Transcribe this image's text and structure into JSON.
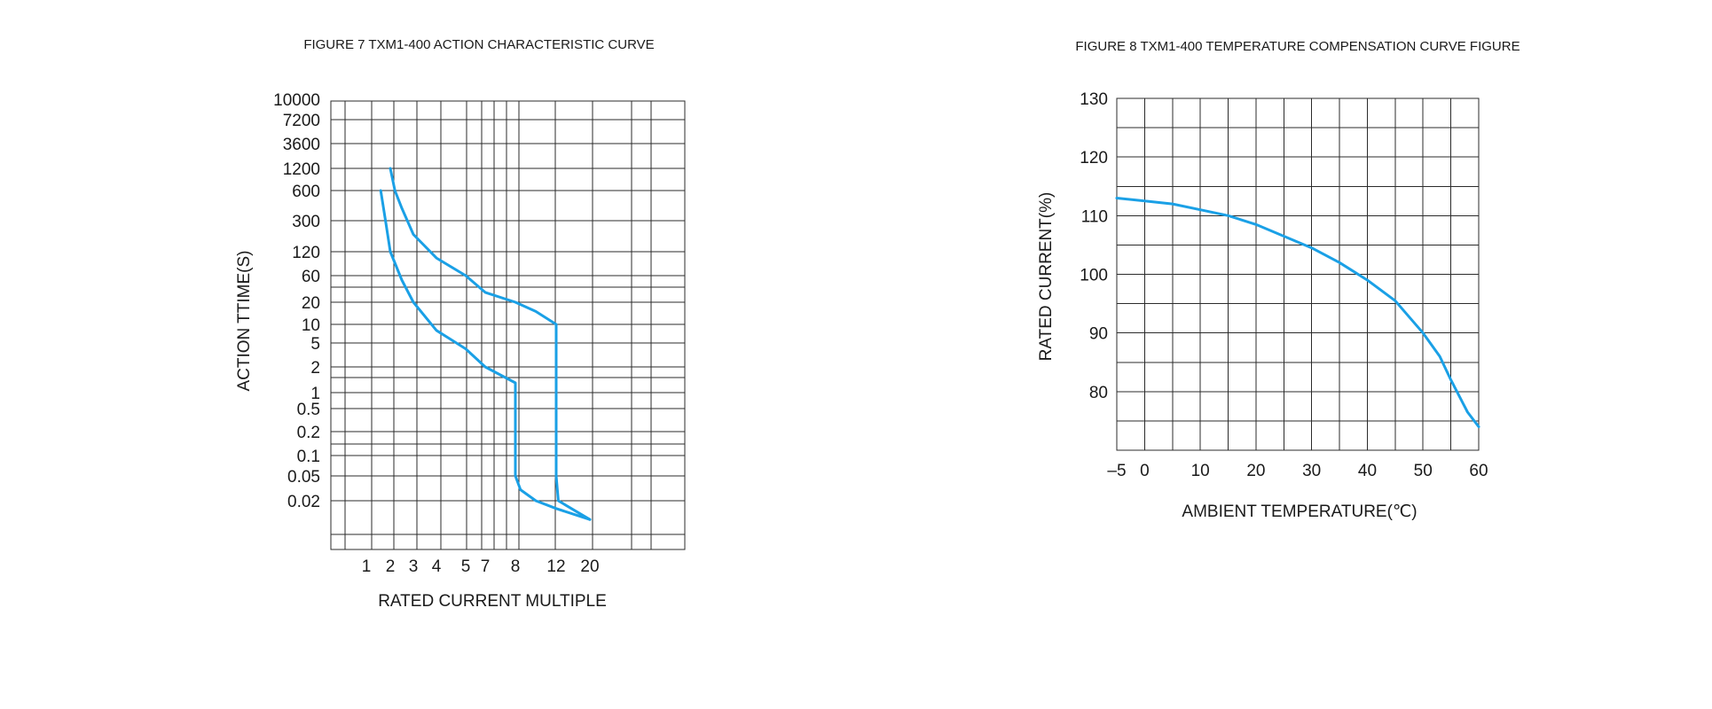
{
  "chart_data": [
    {
      "type": "line",
      "title": "FIGURE 7 TXM1-400 ACTION CHARACTERISTIC CURVE",
      "xlabel": "RATED CURRENT MULTIPLE",
      "ylabel": "ACTION TTIME(S)",
      "x_tick_labels": [
        "1",
        "2",
        "3",
        "4",
        "5",
        "7",
        "8",
        "12",
        "20"
      ],
      "y_tick_labels": [
        "10000",
        "7200",
        "3600",
        "1200",
        "600",
        "300",
        "120",
        "60",
        "20",
        "10",
        "5",
        "2",
        "1",
        "0.5",
        "0.2",
        "0.1",
        "0.05",
        "0.02"
      ],
      "grid": true,
      "series": [
        {
          "x": [
            "1.6",
            "1.8",
            "2",
            "2.5",
            "3",
            "4",
            "5",
            "7",
            "8",
            "8",
            "8",
            "8.5",
            "10",
            "12",
            "20"
          ],
          "y": [
            "600",
            "300",
            "120",
            "50",
            "20",
            "8",
            "4",
            "2",
            "1.3",
            "0.1",
            "0.05",
            "0.03",
            "0.02",
            "0.015",
            "0.01"
          ]
        },
        {
          "x": [
            "2",
            "2.2",
            "2.5",
            "3",
            "4",
            "5",
            "7",
            "8",
            "10",
            "12",
            "12",
            "12",
            "12.5",
            "20"
          ],
          "y": [
            "1200",
            "600",
            "400",
            "200",
            "100",
            "60",
            "30",
            "20",
            "15",
            "10",
            "1",
            "0.05",
            "0.02",
            "0.01"
          ]
        }
      ]
    },
    {
      "type": "line",
      "title": "FIGURE 8 TXM1-400 TEMPERATURE COMPENSATION CURVE FIGURE",
      "xlabel": "AMBIENT TEMPERATURE(℃)",
      "ylabel": "RATED CURRENT(%)",
      "x_tick_labels": [
        "–5",
        "0",
        "10",
        "20",
        "30",
        "40",
        "50",
        "60"
      ],
      "y_tick_labels": [
        "130",
        "120",
        "110",
        "100",
        "90",
        "80"
      ],
      "xlim": [
        -5,
        60
      ],
      "ylim": [
        70,
        130
      ],
      "grid": true,
      "series": [
        {
          "x": [
            -5,
            0,
            5,
            10,
            15,
            20,
            25,
            30,
            35,
            40,
            45,
            50,
            53,
            55,
            58,
            60
          ],
          "y": [
            113,
            112.5,
            112,
            111,
            110,
            108.5,
            106.5,
            104.5,
            102,
            99,
            95.5,
            90,
            86,
            82,
            76.5,
            74
          ]
        }
      ]
    }
  ]
}
